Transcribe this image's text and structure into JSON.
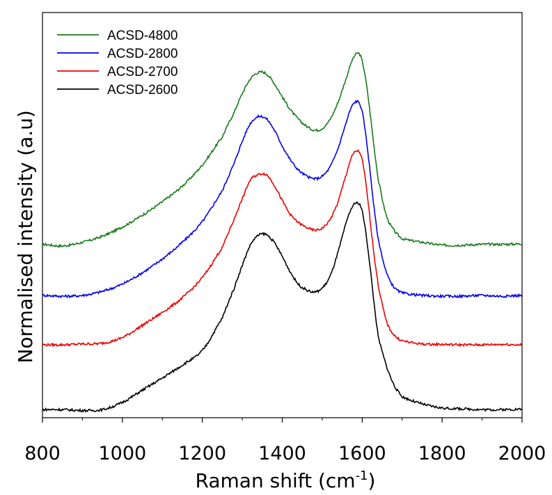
{
  "chart_data": {
    "type": "line",
    "title": "",
    "xlabel": "Raman shift (cm",
    "xlabel_superscript": "-1",
    "xlabel_suffix": ")",
    "ylabel": "Normalised intensity (a.u)",
    "xlim": [
      800,
      2000
    ],
    "ylim": [
      0,
      1.0
    ],
    "x_ticks": [
      800,
      1000,
      1200,
      1400,
      1600,
      1800,
      2000
    ],
    "x_tick_labels": [
      "800",
      "1000",
      "1200",
      "1400",
      "1600",
      "1800",
      "2000"
    ],
    "y_tick_labels_shown": false,
    "grid": false,
    "legend_position": "top-left",
    "series": [
      {
        "name": "ACSD-4800",
        "color": "#1a7a1a",
        "x": [
          800,
          850,
          900,
          950,
          1000,
          1050,
          1100,
          1150,
          1200,
          1250,
          1280,
          1300,
          1320,
          1340,
          1360,
          1380,
          1400,
          1420,
          1440,
          1460,
          1480,
          1500,
          1520,
          1540,
          1560,
          1575,
          1590,
          1600,
          1610,
          1620,
          1630,
          1640,
          1660,
          1680,
          1700,
          1750,
          1800,
          1850,
          1900,
          1950,
          2000
        ],
        "y": [
          0.428,
          0.424,
          0.433,
          0.448,
          0.471,
          0.5,
          0.533,
          0.572,
          0.624,
          0.693,
          0.754,
          0.8,
          0.836,
          0.852,
          0.849,
          0.825,
          0.792,
          0.761,
          0.737,
          0.72,
          0.71,
          0.714,
          0.737,
          0.78,
          0.837,
          0.882,
          0.9,
          0.88,
          0.827,
          0.75,
          0.665,
          0.588,
          0.5,
          0.462,
          0.442,
          0.433,
          0.426,
          0.426,
          0.428,
          0.428,
          0.429
        ]
      },
      {
        "name": "ACSD-2800",
        "color": "#0000ee",
        "x": [
          800,
          850,
          900,
          950,
          1000,
          1050,
          1100,
          1150,
          1200,
          1250,
          1280,
          1300,
          1320,
          1340,
          1360,
          1380,
          1400,
          1420,
          1440,
          1460,
          1480,
          1500,
          1520,
          1540,
          1560,
          1575,
          1590,
          1600,
          1610,
          1620,
          1630,
          1640,
          1660,
          1680,
          1700,
          1750,
          1800,
          1850,
          1900,
          1950,
          2000
        ],
        "y": [
          0.302,
          0.3,
          0.302,
          0.312,
          0.33,
          0.358,
          0.392,
          0.433,
          0.484,
          0.56,
          0.628,
          0.682,
          0.726,
          0.743,
          0.738,
          0.71,
          0.671,
          0.637,
          0.612,
          0.597,
          0.59,
          0.596,
          0.62,
          0.666,
          0.728,
          0.77,
          0.78,
          0.755,
          0.69,
          0.605,
          0.515,
          0.44,
          0.36,
          0.322,
          0.308,
          0.302,
          0.3,
          0.3,
          0.302,
          0.3,
          0.302
        ]
      },
      {
        "name": "ACSD-2700",
        "color": "#ee0000",
        "x": [
          800,
          850,
          900,
          950,
          1000,
          1050,
          1100,
          1150,
          1200,
          1250,
          1280,
          1300,
          1320,
          1340,
          1360,
          1380,
          1400,
          1420,
          1440,
          1460,
          1480,
          1500,
          1520,
          1540,
          1560,
          1575,
          1590,
          1600,
          1610,
          1620,
          1630,
          1640,
          1660,
          1680,
          1700,
          1750,
          1800,
          1850,
          1900,
          1950,
          2000
        ],
        "y": [
          0.18,
          0.18,
          0.182,
          0.184,
          0.198,
          0.228,
          0.26,
          0.296,
          0.346,
          0.42,
          0.49,
          0.54,
          0.586,
          0.6,
          0.6,
          0.574,
          0.536,
          0.502,
          0.482,
          0.47,
          0.463,
          0.468,
          0.49,
          0.534,
          0.6,
          0.646,
          0.658,
          0.636,
          0.572,
          0.486,
          0.4,
          0.326,
          0.24,
          0.204,
          0.19,
          0.182,
          0.181,
          0.18,
          0.18,
          0.181,
          0.18
        ]
      },
      {
        "name": "ACSD-2600",
        "color": "#000000",
        "x": [
          800,
          850,
          900,
          950,
          1000,
          1050,
          1100,
          1150,
          1200,
          1250,
          1280,
          1300,
          1320,
          1340,
          1360,
          1380,
          1400,
          1420,
          1440,
          1460,
          1480,
          1500,
          1520,
          1540,
          1560,
          1575,
          1590,
          1600,
          1610,
          1620,
          1630,
          1640,
          1660,
          1680,
          1700,
          1750,
          1800,
          1850,
          1900,
          1950,
          2000
        ],
        "y": [
          0.02,
          0.02,
          0.018,
          0.02,
          0.038,
          0.068,
          0.098,
          0.13,
          0.166,
          0.246,
          0.32,
          0.376,
          0.426,
          0.45,
          0.452,
          0.432,
          0.398,
          0.36,
          0.33,
          0.316,
          0.31,
          0.32,
          0.35,
          0.41,
          0.48,
          0.52,
          0.53,
          0.51,
          0.45,
          0.37,
          0.28,
          0.2,
          0.13,
          0.08,
          0.052,
          0.034,
          0.024,
          0.022,
          0.02,
          0.02,
          0.021
        ]
      }
    ]
  }
}
